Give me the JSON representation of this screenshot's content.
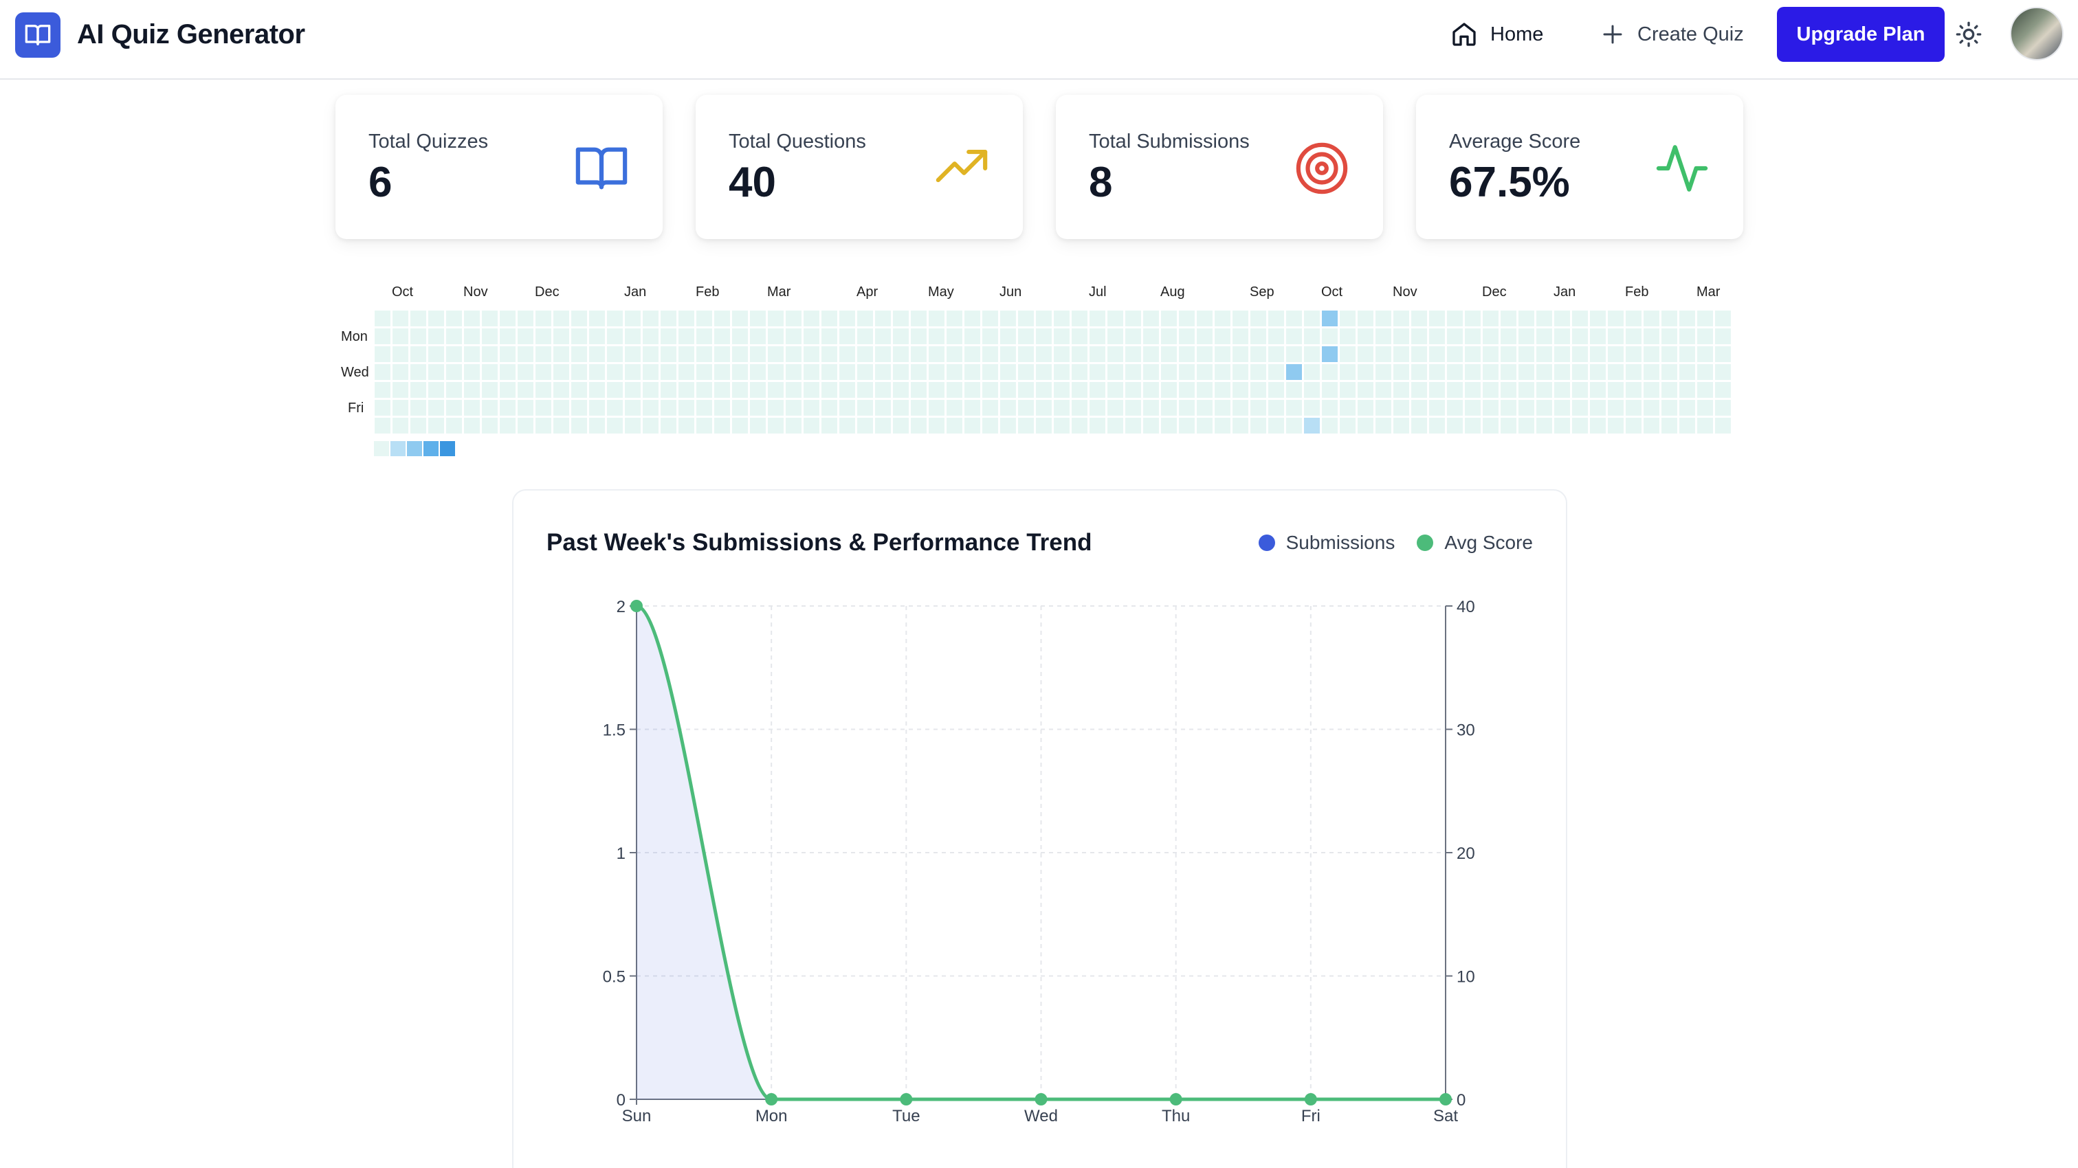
{
  "header": {
    "app_title": "AI Quiz Generator",
    "nav": {
      "home": "Home",
      "create_quiz": "Create Quiz"
    },
    "upgrade_label": "Upgrade Plan"
  },
  "stats": [
    {
      "label": "Total Quizzes",
      "value": "6",
      "icon": "book-open-icon",
      "color": "#3b6fdc"
    },
    {
      "label": "Total Questions",
      "value": "40",
      "icon": "trending-up-icon",
      "color": "#e0b324"
    },
    {
      "label": "Total Submissions",
      "value": "8",
      "icon": "target-icon",
      "color": "#e04b3f"
    },
    {
      "label": "Average Score",
      "value": "67.5%",
      "icon": "activity-icon",
      "color": "#3fbf6a"
    }
  ],
  "heatmap": {
    "months": [
      "Oct",
      "Nov",
      "Dec",
      "Jan",
      "Feb",
      "Mar",
      "Apr",
      "May",
      "Jun",
      "Jul",
      "Aug",
      "Sep",
      "Oct",
      "Nov",
      "Dec",
      "Jan",
      "Feb",
      "Mar"
    ],
    "days": [
      "Mon",
      "Wed",
      "Fri"
    ],
    "colors": {
      "empty": "#e6f6f3",
      "level1": "#b8dff5",
      "level2": "#8fcaf0",
      "level3": "#5eb0ea",
      "level4": "#3a96e0"
    },
    "legend_levels": [
      "empty",
      "level1",
      "level2",
      "level3",
      "level4"
    ]
  },
  "chart": {
    "title": "Past Week's Submissions & Performance Trend",
    "legend": [
      {
        "name": "Submissions",
        "color": "#3b5bdb"
      },
      {
        "name": "Avg Score",
        "color": "#4cbb7a"
      }
    ]
  },
  "chart_data": {
    "type": "line",
    "title": "Past Week's Submissions & Performance Trend",
    "categories": [
      "Sun",
      "Mon",
      "Tue",
      "Wed",
      "Thu",
      "Fri",
      "Sat"
    ],
    "y_left": {
      "ticks": [
        0,
        0.5,
        1,
        1.5,
        2
      ],
      "ylim": [
        0,
        2
      ]
    },
    "y_right": {
      "ticks": [
        0,
        10,
        20,
        30,
        40
      ],
      "ylim": [
        0,
        40
      ]
    },
    "series": [
      {
        "name": "Submissions",
        "axis": "left",
        "type": "area",
        "values": [
          2,
          0,
          0,
          0,
          0,
          0,
          0
        ],
        "color": "#3b5bdb"
      },
      {
        "name": "Avg Score",
        "axis": "right",
        "type": "line",
        "values": [
          40,
          0,
          0,
          0,
          0,
          0,
          0
        ],
        "color": "#4cbb7a"
      }
    ],
    "grid": true,
    "legend_position": "top-right"
  }
}
